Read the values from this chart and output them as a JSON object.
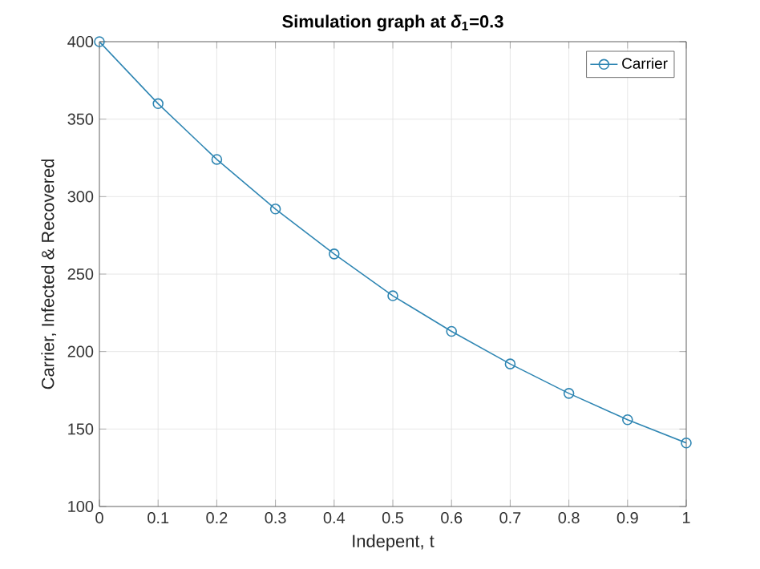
{
  "chart_data": {
    "type": "line",
    "title": "Simulation graph at *δ*$_{1}$=0.3",
    "xlabel": "Indepent, t",
    "ylabel": "Carrier, Infected & Recovered",
    "x": [
      0,
      0.1,
      0.2,
      0.3,
      0.4,
      0.5,
      0.6,
      0.7,
      0.8,
      0.9,
      1
    ],
    "series": [
      {
        "name": "Carrier",
        "color": "#2f86b3",
        "values": [
          400,
          360,
          324,
          292,
          263,
          236,
          213,
          192,
          173,
          156,
          141
        ]
      }
    ],
    "xlim": [
      0,
      1
    ],
    "ylim": [
      100,
      400
    ],
    "xticks": [
      0,
      0.1,
      0.2,
      0.3,
      0.4,
      0.5,
      0.6,
      0.7,
      0.8,
      0.9,
      1
    ],
    "yticks": [
      100,
      150,
      200,
      250,
      300,
      350,
      400
    ],
    "grid": true,
    "legend": "top right",
    "marker": "circle",
    "line_style": "solid"
  }
}
